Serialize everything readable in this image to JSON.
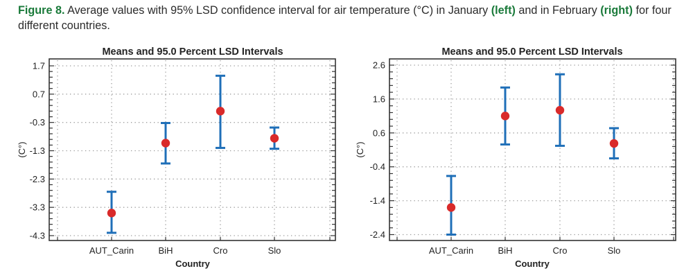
{
  "caption": {
    "label": "Figure 8.",
    "text_1": " Average values with 95% LSD confidence interval for air temperature (°C) in January ",
    "left_word": "(left)",
    "text_2": " and in February ",
    "right_word": "(right)",
    "text_3": " for four different countries."
  },
  "colors": {
    "caption_highlight": "#1a7a3a",
    "error_bar": "#1f6fb8",
    "mean_marker": "#d92a2a"
  },
  "chart_data": [
    {
      "type": "scatter",
      "subtype": "means-with-error-bars",
      "month": "January",
      "title": "Means and 95.0 Percent LSD Intervals",
      "xlabel": "Country",
      "ylabel": "(C°)",
      "categories": [
        "AUT_Carin",
        "BiH",
        "Cro",
        "Slo"
      ],
      "means": [
        -3.5,
        -1.03,
        0.1,
        -0.86
      ],
      "lower": [
        -4.2,
        -1.75,
        -1.2,
        -1.23
      ],
      "upper": [
        -2.75,
        -0.32,
        1.35,
        -0.48
      ],
      "yticks": [
        1.7,
        0.7,
        -0.3,
        -1.3,
        -2.3,
        -3.3,
        -4.3
      ],
      "ytick_labels": [
        "1.7",
        "0.7",
        "-0.3",
        "-1.3",
        "-2.3",
        "-3.3",
        "-4.3"
      ],
      "ylim": [
        -4.3,
        1.7
      ],
      "grid": true
    },
    {
      "type": "scatter",
      "subtype": "means-with-error-bars",
      "month": "February",
      "title": "Means and 95.0 Percent LSD Intervals",
      "xlabel": "Country",
      "ylabel": "(C°)",
      "categories": [
        "AUT_Carin",
        "BiH",
        "Cro",
        "Slo"
      ],
      "means": [
        -1.6,
        1.1,
        1.27,
        0.29
      ],
      "lower": [
        -2.4,
        0.26,
        0.22,
        -0.15
      ],
      "upper": [
        -0.67,
        1.94,
        2.33,
        0.74
      ],
      "yticks": [
        2.6,
        1.6,
        0.6,
        -0.4,
        -1.4,
        -2.4
      ],
      "ytick_labels": [
        "2.6",
        "1.6",
        "0.6",
        "-0.4",
        "-1.4",
        "-2.4"
      ],
      "ylim": [
        -2.4,
        2.6
      ],
      "grid": true
    }
  ]
}
